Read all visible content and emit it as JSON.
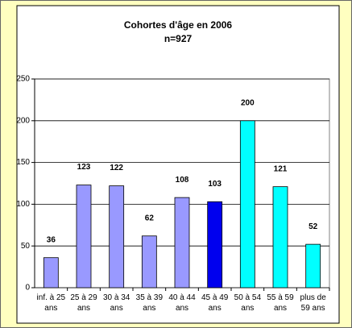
{
  "chart_data": {
    "type": "bar",
    "title": "Cohortes d'âge en 2006",
    "subtitle": "n=927",
    "categories": [
      "inf. à 25 ans",
      "25 à 29 ans",
      "30 à 34 ans",
      "35 à 39 ans",
      "40 à 44 ans",
      "45 à 49 ans",
      "50 à 54 ans",
      "55 à 59 ans",
      "plus de 59 ans"
    ],
    "values": [
      36,
      123,
      122,
      62,
      108,
      103,
      200,
      121,
      52
    ],
    "colors": [
      "#9999ff",
      "#9999ff",
      "#9999ff",
      "#9999ff",
      "#9999ff",
      "#0000ee",
      "#00ffff",
      "#00ffff",
      "#00ffff"
    ],
    "ylim": [
      0,
      250
    ],
    "yticks": [
      0,
      50,
      100,
      150,
      200,
      250
    ],
    "grid": true
  }
}
